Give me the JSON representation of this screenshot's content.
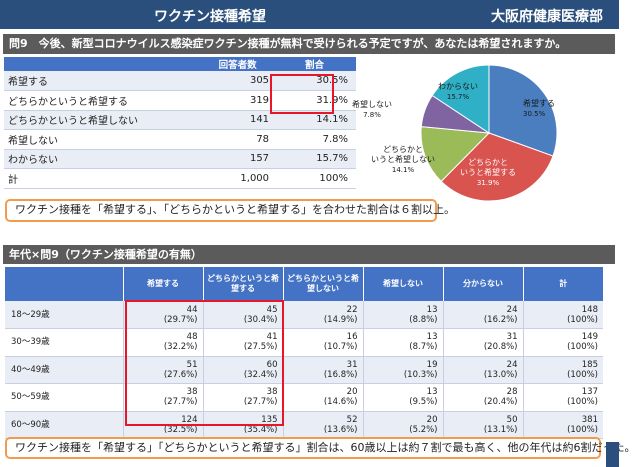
{
  "header": {
    "title": "ワクチン接種希望",
    "org": "大阪府健康医療部"
  },
  "question": "問9　今後、新型コロナウイルス感染症ワクチン接種が無料で受けられる予定ですが、あなたは希望されますか。",
  "table1": {
    "headers": [
      "",
      "回答者数",
      "割合"
    ],
    "rows": [
      {
        "label": "希望する",
        "count": "305",
        "pct": "30.5%"
      },
      {
        "label": "どちらかというと希望する",
        "count": "319",
        "pct": "31.9%"
      },
      {
        "label": "どちらかというと希望しない",
        "count": "141",
        "pct": "14.1%"
      },
      {
        "label": "希望しない",
        "count": "78",
        "pct": "7.8%"
      },
      {
        "label": "わからない",
        "count": "157",
        "pct": "15.7%"
      },
      {
        "label": "計",
        "count": "1,000",
        "pct": "100%"
      }
    ]
  },
  "chart_data": {
    "type": "pie",
    "slices": [
      {
        "label": "希望する",
        "pct_label": "30.5%",
        "value": 30.5,
        "color": "#4a7ebf"
      },
      {
        "label": "どちらかというと希望する",
        "pct_label": "31.9%",
        "value": 31.9,
        "color": "#d9534f"
      },
      {
        "label": "どちらかというと希望しない",
        "pct_label": "14.1%",
        "value": 14.1,
        "color": "#9bbb59"
      },
      {
        "label": "希望しない",
        "pct_label": "7.8%",
        "value": 7.8,
        "color": "#8064a2"
      },
      {
        "label": "わからない",
        "pct_label": "15.7%",
        "value": 15.7,
        "color": "#2fb0c6"
      }
    ]
  },
  "note1": "ワクチン接種を「希望する」、「どちらかというと希望する」を合わせた割合は６割以上。",
  "section2": "年代×問9（ワクチン接種希望の有無）",
  "table2": {
    "headers": [
      "",
      "希望する",
      "どちらかというと希望する",
      "どちらかというと希望しない",
      "希望しない",
      "分からない",
      "計"
    ],
    "rows": [
      {
        "age": "18～29歳",
        "cells": [
          [
            "44",
            "(29.7%)"
          ],
          [
            "45",
            "(30.4%)"
          ],
          [
            "22",
            "(14.9%)"
          ],
          [
            "13",
            "(8.8%)"
          ],
          [
            "24",
            "(16.2%)"
          ],
          [
            "148",
            "(100%)"
          ]
        ]
      },
      {
        "age": "30～39歳",
        "cells": [
          [
            "48",
            "(32.2%)"
          ],
          [
            "41",
            "(27.5%)"
          ],
          [
            "16",
            "(10.7%)"
          ],
          [
            "13",
            "(8.7%)"
          ],
          [
            "31",
            "(20.8%)"
          ],
          [
            "149",
            "(100%)"
          ]
        ]
      },
      {
        "age": "40～49歳",
        "cells": [
          [
            "51",
            "(27.6%)"
          ],
          [
            "60",
            "(32.4%)"
          ],
          [
            "31",
            "(16.8%)"
          ],
          [
            "19",
            "(10.3%)"
          ],
          [
            "24",
            "(13.0%)"
          ],
          [
            "185",
            "(100%)"
          ]
        ]
      },
      {
        "age": "50～59歳",
        "cells": [
          [
            "38",
            "(27.7%)"
          ],
          [
            "38",
            "(27.7%)"
          ],
          [
            "20",
            "(14.6%)"
          ],
          [
            "13",
            "(9.5%)"
          ],
          [
            "28",
            "(20.4%)"
          ],
          [
            "137",
            "(100%)"
          ]
        ]
      },
      {
        "age": "60～90歳",
        "cells": [
          [
            "124",
            "(32.5%)"
          ],
          [
            "135",
            "(35.4%)"
          ],
          [
            "52",
            "(13.6%)"
          ],
          [
            "20",
            "(5.2%)"
          ],
          [
            "50",
            "(13.1%)"
          ],
          [
            "381",
            "(100%)"
          ]
        ]
      }
    ]
  },
  "note2": "ワクチン接種を「希望する」「どちらかというと希望する」割合は、60歳以上は約７割で最も高く、他の年代は約6割だった。"
}
